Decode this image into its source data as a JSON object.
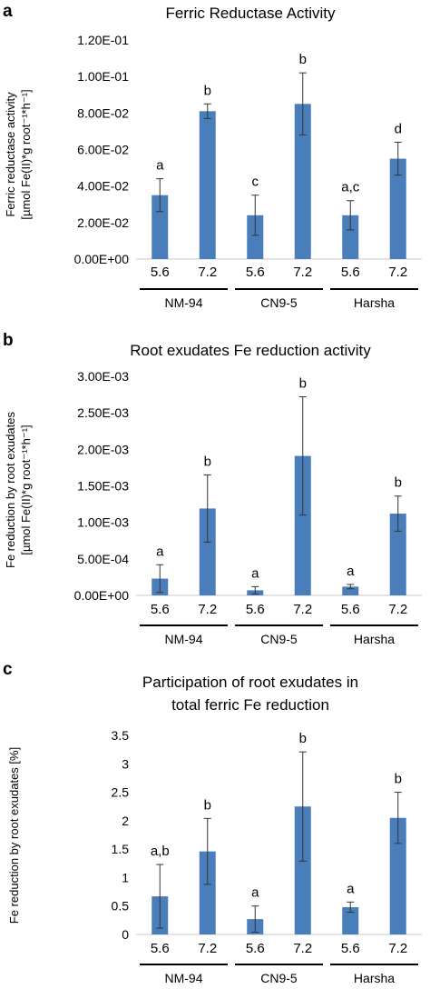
{
  "chart_data": [
    {
      "type": "bar",
      "panel": "a",
      "title": "Ferric Reductase Activity",
      "ylabel_lines": [
        "Ferric reductase activity",
        "[µmol Fe(II)*g root⁻¹*h⁻¹]"
      ],
      "categories": [
        "5.6",
        "7.2",
        "5.6",
        "7.2",
        "5.6",
        "7.2"
      ],
      "groups": [
        "NM-94",
        "CN9-5",
        "Harsha"
      ],
      "values": [
        0.035,
        0.081,
        0.024,
        0.085,
        0.024,
        0.055
      ],
      "errors": [
        0.009,
        0.004,
        0.011,
        0.017,
        0.008,
        0.009
      ],
      "letters": [
        "a",
        "b",
        "c",
        "b",
        "a,c",
        "d"
      ],
      "yticks": [
        "0.00E+00",
        "2.00E-02",
        "4.00E-02",
        "6.00E-02",
        "8.00E-02",
        "1.00E-01",
        "1.20E-01"
      ],
      "ylim": [
        0,
        0.12
      ],
      "color": "#4a7ebb",
      "grid": false
    },
    {
      "type": "bar",
      "panel": "b",
      "title": "Root exudates Fe reduction activity",
      "ylabel_lines": [
        "Fe reduction by root exudates",
        "[µmol Fe(II)*g root⁻¹*h⁻¹]"
      ],
      "categories": [
        "5.6",
        "7.2",
        "5.6",
        "7.2",
        "5.6",
        "7.2"
      ],
      "groups": [
        "NM-94",
        "CN9-5",
        "Harsha"
      ],
      "values": [
        0.00023,
        0.00119,
        7e-05,
        0.00191,
        0.00012,
        0.00112
      ],
      "errors": [
        0.00019,
        0.00046,
        5e-05,
        0.00081,
        3e-05,
        0.00024
      ],
      "letters": [
        "a",
        "b",
        "a",
        "b",
        "a",
        "b"
      ],
      "yticks": [
        "0.00E+00",
        "5.00E-04",
        "1.00E-03",
        "1.50E-03",
        "2.00E-03",
        "2.50E-03",
        "3.00E-03"
      ],
      "ylim": [
        0,
        0.003
      ],
      "color": "#4a7ebb",
      "grid": false
    },
    {
      "type": "bar",
      "panel": "c",
      "title_lines": [
        "Participation of root exudates in",
        "total ferric Fe reduction"
      ],
      "ylabel_lines": [
        "Fe reduction by root exudates [%]"
      ],
      "categories": [
        "5.6",
        "7.2",
        "5.6",
        "7.2",
        "5.6",
        "7.2"
      ],
      "groups": [
        "NM-94",
        "CN9-5",
        "Harsha"
      ],
      "values": [
        0.67,
        1.46,
        0.27,
        2.25,
        0.48,
        2.05
      ],
      "errors": [
        0.56,
        0.58,
        0.23,
        0.96,
        0.09,
        0.45
      ],
      "letters": [
        "a,b",
        "b",
        "a",
        "b",
        "a",
        "b"
      ],
      "yticks": [
        "0",
        "0.5",
        "1",
        "1.5",
        "2",
        "2.5",
        "3",
        "3.5"
      ],
      "ylim": [
        0,
        3.5
      ],
      "color": "#4a7ebb",
      "grid": false
    }
  ]
}
